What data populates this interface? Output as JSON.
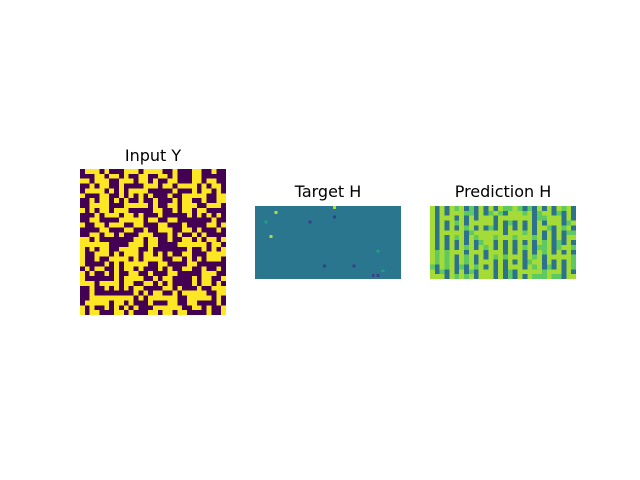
{
  "chart_data": [
    {
      "type": "heatmap",
      "title": "Input Y",
      "rows": 30,
      "cols": 30,
      "colormap": "viridis",
      "value_range": [
        0,
        1
      ],
      "binary_values": [
        0,
        1
      ],
      "colors": {
        "low": "#440154",
        "high": "#fde725"
      },
      "axes_visible": false
    },
    {
      "type": "heatmap",
      "title": "Target H",
      "rows": 15,
      "cols": 30,
      "colormap": "viridis",
      "background_color": "#2a768e",
      "outlier_colors": {
        "dark": "#3b3f87",
        "bright": "#b5de2b",
        "mid": "#1fa088"
      },
      "axes_visible": false
    },
    {
      "type": "heatmap",
      "title": "Prediction H",
      "rows": 15,
      "cols": 30,
      "colormap": "viridis",
      "cell_colors": {
        "bright": "#a5db36",
        "mid": "#5ec962",
        "dark": "#2c728e"
      },
      "axes_visible": false
    }
  ]
}
